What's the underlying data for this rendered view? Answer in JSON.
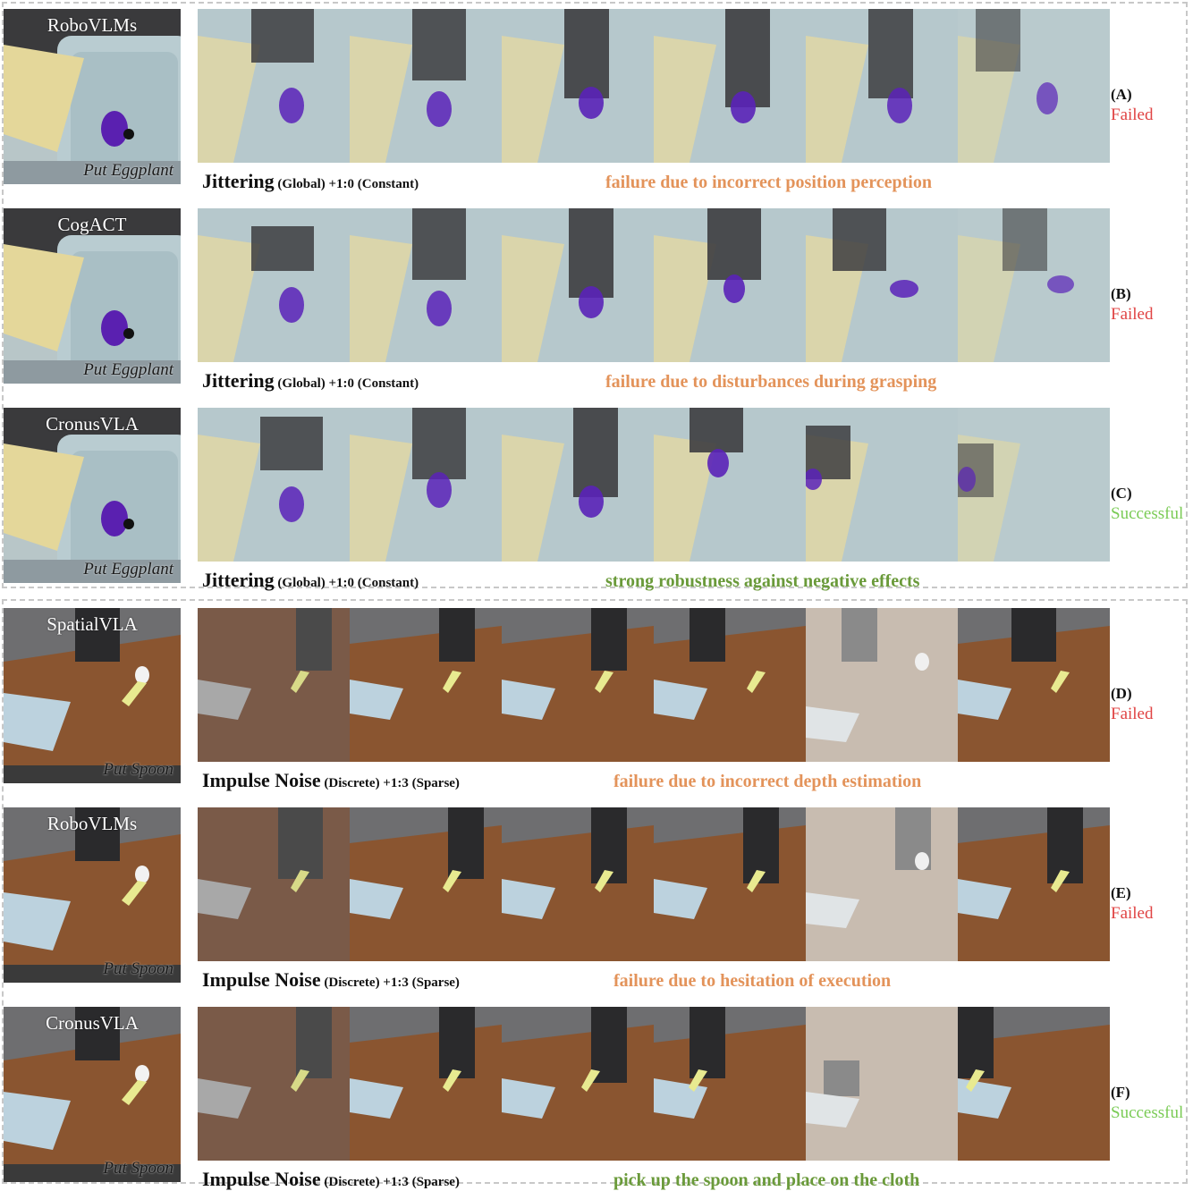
{
  "rows": [
    {
      "letter": "(A)",
      "status": "Failed",
      "model": "RoboVLMs",
      "task": "Put Eggplant",
      "perturbation": "Jittering",
      "detail": " (Global) +1:0 (Constant)",
      "note": "failure due to incorrect position perception"
    },
    {
      "letter": "(B)",
      "status": "Failed",
      "model": "CogACT",
      "task": "Put Eggplant",
      "perturbation": "Jittering",
      "detail": " (Global) +1:0 (Constant)",
      "note": "failure due to disturbances during grasping"
    },
    {
      "letter": "(C)",
      "status": "Successful",
      "model": "CronusVLA",
      "task": "Put Eggplant",
      "perturbation": "Jittering",
      "detail": " (Global) +1:0 (Constant)",
      "note": "strong robustness against negative effects"
    },
    {
      "letter": "(D)",
      "status": "Failed",
      "model": "SpatialVLA",
      "task": "Put Spoon",
      "perturbation": "Impulse Noise",
      "detail": " (Discrete) +1:3 (Sparse)",
      "note": "failure due to incorrect depth estimation"
    },
    {
      "letter": "(E)",
      "status": "Failed",
      "model": "RoboVLMs",
      "task": "Put Spoon",
      "perturbation": "Impulse Noise",
      "detail": " (Discrete) +1:3 (Sparse)",
      "note": "failure due to hesitation of execution"
    },
    {
      "letter": "(F)",
      "status": "Successful",
      "model": "CronusVLA",
      "task": "Put Spoon",
      "perturbation": "Impulse Noise",
      "detail": " (Discrete) +1:3 (Sparse)",
      "note": "pick up the spoon and place on the cloth"
    }
  ],
  "colors": {
    "failed": "#e04444",
    "successful": "#7acb55",
    "failure_note": "#e3935a",
    "success_note": "#6a9a3a"
  }
}
